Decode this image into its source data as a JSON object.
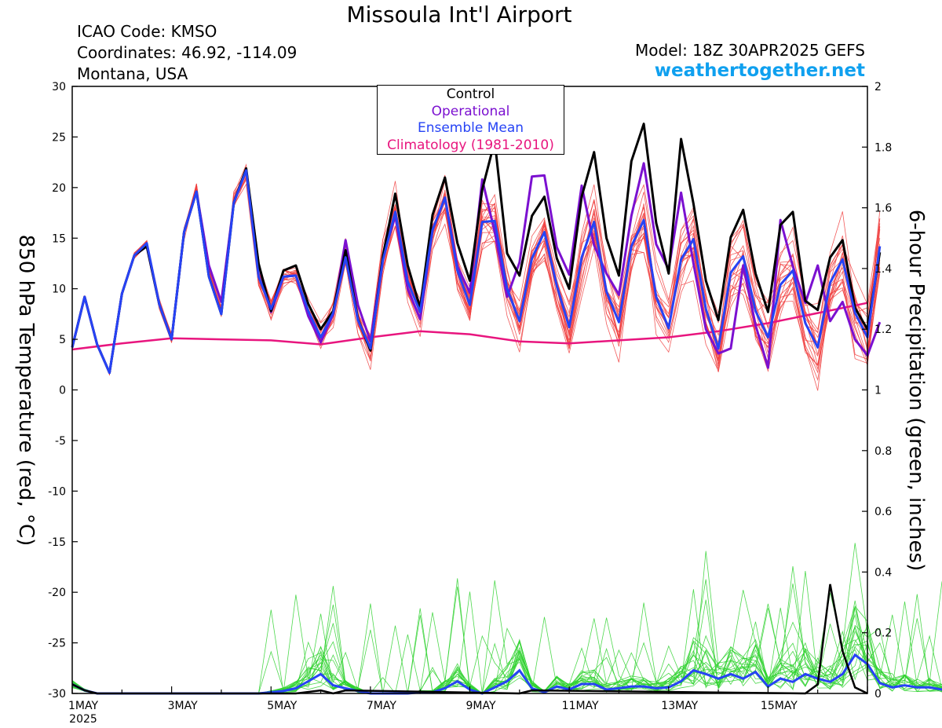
{
  "header": {
    "title": "Missoula Int'l Airport",
    "icao": "ICAO Code: KMSO",
    "coordinates": "Coordinates: 46.92, -114.09",
    "region": "Montana, USA",
    "model": "Model: 18Z 30APR2025 GEFS",
    "website": "weathertogether.net"
  },
  "colors": {
    "control": "#000000",
    "operational": "#7b10d0",
    "ensemble_mean": "#2643f5",
    "climatology": "#e8157e",
    "members_temp": "#f04040",
    "members_precip": "#2ed12e",
    "website": "#0fa0ef"
  },
  "chart_data": {
    "type": "line",
    "title": "Missoula Int'l Airport",
    "ylabel_left": "850 hPa Temperature (red, °C)",
    "ylabel_right": "6-hour Precipitation (green, inches)",
    "x_tick_labels": [
      "1MAY",
      "3MAY",
      "5MAY",
      "7MAY",
      "9MAY",
      "11MAY",
      "13MAY",
      "15MAY"
    ],
    "x_year_label": "2025",
    "x_range_days": [
      0,
      16
    ],
    "x_step_hours": 6,
    "ylim_left": [
      -30,
      30
    ],
    "y_ticks_left": [
      -30,
      -25,
      -20,
      -15,
      -10,
      -5,
      0,
      5,
      10,
      15,
      20,
      25,
      30
    ],
    "ylim_right": [
      0,
      2
    ],
    "y_ticks_right": [
      0,
      0.2,
      0.4,
      0.6,
      0.8,
      1,
      1.2,
      1.4,
      1.6,
      1.8,
      2
    ],
    "legend": [
      "Control",
      "Operational",
      "Ensemble Mean",
      "Climatology (1981-2010)"
    ],
    "grid": false,
    "series": [
      {
        "name": "Control",
        "axis": "left",
        "values": [
          4.2,
          9.2,
          4.5,
          1.7,
          9.5,
          13.3,
          14.2,
          8.5,
          5.0,
          15.6,
          19.6,
          11.2,
          7.5,
          18.5,
          21.9,
          12.5,
          7.8,
          11.8,
          12.3,
          8.5,
          6.0,
          7.8,
          13.8,
          7.0,
          3.9,
          13.2,
          19.4,
          12.3,
          8.1,
          17.3,
          21.0,
          14.5,
          10.8,
          19.8,
          24.6,
          13.5,
          11.3,
          17.2,
          19.1,
          13.0,
          10.0,
          19.1,
          23.5,
          15.0,
          11.3,
          22.6,
          26.3,
          16.5,
          11.5,
          24.8,
          18.4,
          10.8,
          6.9,
          15.1,
          17.8,
          11.5,
          7.7,
          16.3,
          17.6,
          8.8,
          7.9,
          13.1,
          14.8,
          8.1,
          6.0,
          13.6
        ]
      },
      {
        "name": "Operational",
        "axis": "left",
        "values": [
          4.2,
          9.2,
          4.5,
          1.7,
          9.5,
          13.3,
          14.2,
          8.5,
          5.0,
          15.6,
          19.6,
          12.3,
          8.7,
          18.5,
          21.7,
          12.4,
          7.7,
          11.2,
          11.3,
          7.3,
          4.7,
          7.5,
          14.8,
          8.4,
          4.8,
          13.1,
          17.2,
          10.0,
          7.0,
          15.8,
          19.0,
          12.2,
          9.6,
          20.8,
          15.6,
          9.2,
          12.6,
          21.1,
          21.2,
          14.1,
          11.4,
          20.2,
          14.3,
          11.5,
          9.4,
          17.2,
          22.4,
          14.4,
          11.9,
          19.5,
          12.5,
          6.0,
          3.6,
          4.1,
          12.3,
          6.4,
          2.2,
          16.8,
          12.2,
          8.6,
          12.3,
          6.8,
          8.7,
          5.0,
          3.4,
          6.7
        ]
      },
      {
        "name": "Ensemble Mean",
        "axis": "left",
        "values": [
          4.2,
          9.2,
          4.5,
          1.7,
          9.5,
          13.3,
          14.5,
          8.5,
          5.0,
          15.6,
          19.6,
          11.2,
          7.5,
          18.5,
          21.7,
          11.2,
          8.0,
          11.2,
          11.3,
          7.8,
          5.2,
          7.6,
          13.1,
          6.9,
          4.1,
          12.8,
          17.6,
          10.7,
          7.7,
          15.8,
          19.0,
          11.8,
          8.4,
          16.6,
          16.7,
          10.0,
          6.8,
          13.0,
          15.6,
          10.3,
          6.2,
          13.1,
          16.6,
          9.7,
          6.7,
          14.2,
          16.8,
          9.2,
          6.1,
          12.9,
          14.9,
          8.0,
          4.1,
          11.6,
          13.2,
          7.8,
          5.2,
          10.4,
          11.8,
          6.6,
          4.2,
          10.6,
          12.9,
          7.6,
          5.2,
          14.2
        ]
      },
      {
        "name": "Climatology (1981-2010)",
        "axis": "left",
        "x": [
          0,
          1,
          2,
          3,
          4,
          5,
          6,
          7,
          8,
          9,
          10,
          11,
          12,
          13,
          14,
          15,
          16
        ],
        "values": [
          4.0,
          4.6,
          5.1,
          5.0,
          4.9,
          4.5,
          5.2,
          5.8,
          5.5,
          4.8,
          4.6,
          4.9,
          5.2,
          5.8,
          6.6,
          7.6,
          8.6
        ]
      },
      {
        "name": "Control precip",
        "axis": "right",
        "x": [
          0,
          0.25,
          0.5,
          4.5,
          5,
          5.25,
          5.5,
          9,
          9.25,
          14.75,
          15,
          15.25,
          15.5,
          15.75,
          16
        ],
        "values": [
          0.03,
          0.01,
          0.0,
          0.0,
          0.01,
          0.0,
          0.01,
          0.0,
          0.01,
          0.0,
          0.03,
          0.36,
          0.14,
          0.02,
          0.0
        ]
      },
      {
        "name": "Ensemble mean precip",
        "axis": "right",
        "values": [
          0.03,
          0.01,
          0,
          0,
          0,
          0,
          0,
          0,
          0,
          0,
          0,
          0,
          0,
          0,
          0,
          0,
          0.004,
          0.008,
          0.017,
          0.04,
          0.064,
          0.027,
          0.017,
          0.008,
          0.0,
          0.0,
          0.0,
          0.0,
          0.004,
          0.004,
          0.017,
          0.04,
          0.013,
          0.0,
          0.02,
          0.04,
          0.076,
          0.017,
          0.004,
          0.023,
          0.013,
          0.031,
          0.031,
          0.013,
          0.017,
          0.023,
          0.023,
          0.017,
          0.02,
          0.04,
          0.076,
          0.064,
          0.049,
          0.064,
          0.049,
          0.071,
          0.023,
          0.049,
          0.038,
          0.064,
          0.049,
          0.038,
          0.064,
          0.127,
          0.097,
          0.034,
          0.02,
          0.027,
          0.02,
          0.02,
          0.013,
          0.004,
          0.0
        ]
      }
    ],
    "ensemble_members_count": 20
  }
}
